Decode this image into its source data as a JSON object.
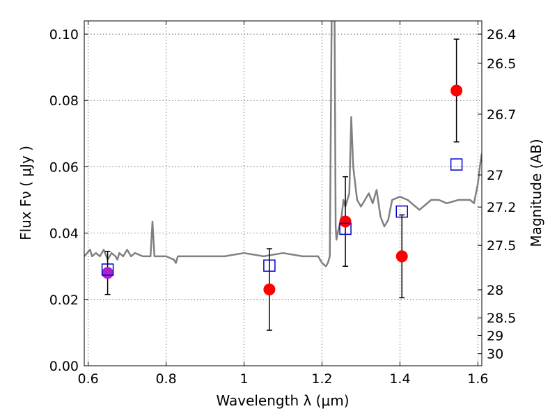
{
  "chart_data": {
    "type": "scatter",
    "xlabel": "Wavelength  λ (μm)",
    "ylabel": "Flux  Fν  ( μJy )",
    "ylabel_right": "Magnitude (AB)",
    "xlim": [
      0.59,
      1.61
    ],
    "ylim": [
      0.0,
      0.104
    ],
    "grid": true,
    "x_ticks": [
      0.6,
      0.8,
      1.0,
      1.2,
      1.4,
      1.6
    ],
    "x_tick_labels": [
      "0.6",
      "0.8",
      "1",
      "1.2",
      "1.4",
      "1.6"
    ],
    "y_ticks": [
      0.0,
      0.02,
      0.04,
      0.06,
      0.08,
      0.1
    ],
    "y_tick_labels": [
      "0.00",
      "0.02",
      "0.04",
      "0.06",
      "0.08",
      "0.10"
    ],
    "right_ticks": [
      {
        "mag": 26.4,
        "label": "26.4"
      },
      {
        "mag": 26.5,
        "label": "26.5"
      },
      {
        "mag": 26.7,
        "label": "26.7"
      },
      {
        "mag": 27.0,
        "label": "27"
      },
      {
        "mag": 27.2,
        "label": "27.2"
      },
      {
        "mag": 27.5,
        "label": "27.5"
      },
      {
        "mag": 28.0,
        "label": "28"
      },
      {
        "mag": 28.5,
        "label": "28.5"
      },
      {
        "mag": 29.0,
        "label": "29"
      },
      {
        "mag": 30.0,
        "label": "30"
      }
    ],
    "colors": {
      "model_line": "#808080",
      "observed": "#ff0000",
      "observed_first": "#aa22cc",
      "model_phot": "#0000cc",
      "errorbar": "#000000"
    },
    "series": [
      {
        "type": "line",
        "x": [
          0.59,
          0.605,
          0.61,
          0.62,
          0.63,
          0.64,
          0.65,
          0.66,
          0.67,
          0.675,
          0.68,
          0.69,
          0.7,
          0.71,
          0.72,
          0.74,
          0.76,
          0.765,
          0.77,
          0.78,
          0.8,
          0.82,
          0.825,
          0.83,
          0.85,
          0.9,
          0.95,
          1.0,
          1.05,
          1.1,
          1.15,
          1.19,
          1.2,
          1.21,
          1.215,
          1.22,
          1.225,
          1.228,
          1.23,
          1.232,
          1.235,
          1.237,
          1.24,
          1.25,
          1.255,
          1.26,
          1.27,
          1.275,
          1.28,
          1.29,
          1.3,
          1.31,
          1.32,
          1.33,
          1.34,
          1.35,
          1.36,
          1.37,
          1.38,
          1.4,
          1.42,
          1.43,
          1.44,
          1.45,
          1.46,
          1.48,
          1.5,
          1.52,
          1.55,
          1.58,
          1.59,
          1.6,
          1.605,
          1.61
        ],
        "y": [
          0.033,
          0.035,
          0.033,
          0.034,
          0.033,
          0.035,
          0.032,
          0.034,
          0.033,
          0.032,
          0.034,
          0.033,
          0.035,
          0.033,
          0.034,
          0.033,
          0.033,
          0.0435,
          0.033,
          0.033,
          0.033,
          0.032,
          0.031,
          0.033,
          0.033,
          0.033,
          0.033,
          0.034,
          0.033,
          0.034,
          0.033,
          0.033,
          0.031,
          0.03,
          0.031,
          0.033,
          0.11,
          0.11,
          0.11,
          0.11,
          0.042,
          0.038,
          0.04,
          0.045,
          0.05,
          0.048,
          0.052,
          0.075,
          0.06,
          0.05,
          0.048,
          0.05,
          0.052,
          0.049,
          0.053,
          0.045,
          0.042,
          0.044,
          0.05,
          0.051,
          0.05,
          0.049,
          0.048,
          0.047,
          0.048,
          0.05,
          0.05,
          0.049,
          0.05,
          0.05,
          0.049,
          0.055,
          0.06,
          0.064
        ]
      },
      {
        "type": "errorbar",
        "x": [
          0.65,
          1.065,
          1.26,
          1.405,
          1.545
        ],
        "y": [
          0.028,
          0.023,
          0.0435,
          0.033,
          0.083
        ],
        "y_err": [
          0.0065,
          0.0123,
          0.0135,
          0.0125,
          0.0155
        ]
      },
      {
        "type": "scatter-square",
        "x": [
          0.65,
          1.065,
          1.26,
          1.405,
          1.545
        ],
        "y": [
          0.029,
          0.0302,
          0.0413,
          0.0465,
          0.0607
        ]
      }
    ]
  }
}
